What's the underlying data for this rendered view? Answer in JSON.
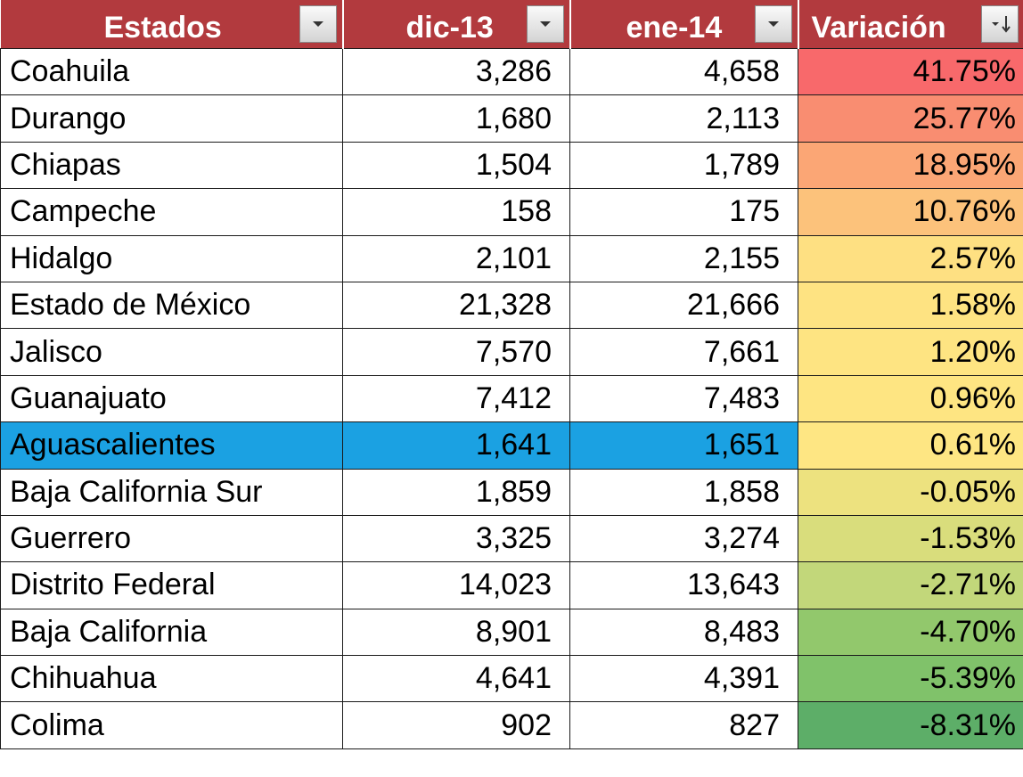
{
  "headers": [
    {
      "label": "Estados",
      "filter_icon": "dropdown-arrow-icon"
    },
    {
      "label": "dic-13",
      "filter_icon": "dropdown-arrow-icon"
    },
    {
      "label": "ene-14",
      "filter_icon": "dropdown-arrow-icon"
    },
    {
      "label": "Variación",
      "filter_icon": "sort-descending-icon"
    }
  ],
  "selected_row_color": "#1ba1e2",
  "header_color": "#b23a3e",
  "rows": [
    {
      "estado": "Coahuila",
      "dic13": "3,286",
      "ene14": "4,658",
      "variacion": "41.75%",
      "color": "#f8696b"
    },
    {
      "estado": "Durango",
      "dic13": "1,680",
      "ene14": "2,113",
      "variacion": "25.77%",
      "color": "#f98d71"
    },
    {
      "estado": "Chiapas",
      "dic13": "1,504",
      "ene14": "1,789",
      "variacion": "18.95%",
      "color": "#fba675"
    },
    {
      "estado": "Campeche",
      "dic13": "158",
      "ene14": "175",
      "variacion": "10.76%",
      "color": "#fcc27b"
    },
    {
      "estado": "Hidalgo",
      "dic13": "2,101",
      "ene14": "2,155",
      "variacion": "2.57%",
      "color": "#fee082"
    },
    {
      "estado": "Estado de México",
      "dic13": "21,328",
      "ene14": "21,666",
      "variacion": "1.58%",
      "color": "#fee382"
    },
    {
      "estado": "Jalisco",
      "dic13": "7,570",
      "ene14": "7,661",
      "variacion": "1.20%",
      "color": "#fee482"
    },
    {
      "estado": "Guanajuato",
      "dic13": "7,412",
      "ene14": "7,483",
      "variacion": "0.96%",
      "color": "#fee582"
    },
    {
      "estado": "Aguascalientes",
      "dic13": "1,641",
      "ene14": "1,651",
      "variacion": "0.61%",
      "color": "#fee683",
      "selected": true
    },
    {
      "estado": "Baja California Sur",
      "dic13": "1,859",
      "ene14": "1,858",
      "variacion": "-0.05%",
      "color": "#ede27f"
    },
    {
      "estado": "Guerrero",
      "dic13": "3,325",
      "ene14": "3,274",
      "variacion": "-1.53%",
      "color": "#d9dd7c"
    },
    {
      "estado": "Distrito Federal",
      "dic13": "14,023",
      "ene14": "13,643",
      "variacion": "-2.71%",
      "color": "#c2d77a"
    },
    {
      "estado": "Baja California",
      "dic13": "8,901",
      "ene14": "8,483",
      "variacion": "-4.70%",
      "color": "#92c86c"
    },
    {
      "estado": "Chihuahua",
      "dic13": "4,641",
      "ene14": "4,391",
      "variacion": "-5.39%",
      "color": "#80c26a"
    },
    {
      "estado": "Colima",
      "dic13": "902",
      "ene14": "827",
      "variacion": "-8.31%",
      "color": "#5dae68"
    }
  ]
}
